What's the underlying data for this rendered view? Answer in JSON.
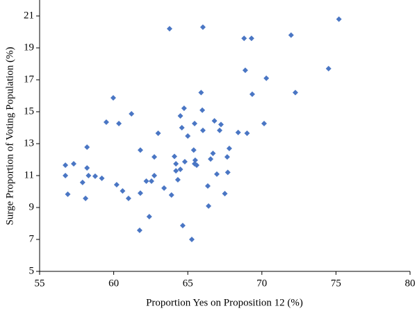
{
  "chart_data": {
    "type": "scatter",
    "x_label": "Proportion Yes on Proposition 12 (%)",
    "y_label": "Surge Proportion of  Voting Population (%)",
    "color": "#4a76c4",
    "xlim": [
      55,
      80
    ],
    "xticks": [
      55,
      60,
      65,
      70,
      75,
      80
    ],
    "ylim": [
      5,
      22
    ],
    "yticks": [
      5,
      7,
      9,
      11,
      13,
      15,
      17,
      19,
      21
    ],
    "x": [
      56.74,
      56.74,
      56.9,
      57.3,
      57.9,
      58.1,
      58.2,
      58.2,
      58.3,
      58.75,
      59.2,
      59.5,
      59.97,
      60.2,
      60.35,
      60.6,
      61.0,
      61.2,
      61.8,
      61.8,
      61.75,
      62.2,
      62.4,
      62.55,
      62.74,
      62.74,
      63.0,
      63.4,
      63.77,
      63.9,
      64.1,
      64.2,
      64.2,
      64.33,
      64.5,
      64.5,
      64.6,
      64.66,
      64.75,
      64.8,
      65.0,
      65.27,
      65.46,
      65.4,
      65.46,
      65.5,
      65.6,
      65.9,
      65.98,
      66.02,
      66.02,
      66.35,
      66.4,
      66.54,
      66.7,
      66.8,
      66.96,
      67.15,
      67.24,
      67.5,
      67.66,
      67.7,
      67.8,
      68.4,
      68.8,
      68.88,
      69.0,
      69.3,
      69.35,
      70.15,
      70.3,
      71.97,
      72.26,
      74.5,
      75.2
    ],
    "values": [
      11.65,
      11.0,
      9.83,
      11.74,
      10.57,
      9.57,
      12.78,
      11.48,
      11.0,
      10.96,
      10.83,
      14.35,
      15.87,
      10.43,
      14.26,
      10.04,
      9.57,
      14.87,
      12.6,
      9.9,
      7.57,
      10.65,
      8.43,
      10.65,
      11.0,
      12.17,
      13.65,
      10.22,
      20.2,
      9.78,
      12.2,
      11.74,
      11.3,
      10.74,
      11.39,
      14.74,
      14.0,
      7.87,
      15.22,
      11.87,
      13.48,
      7.0,
      14.26,
      12.6,
      11.74,
      11.96,
      11.65,
      16.2,
      15.1,
      13.83,
      20.3,
      10.35,
      9.09,
      12.04,
      12.39,
      14.43,
      11.09,
      13.83,
      14.2,
      9.87,
      12.17,
      11.2,
      12.7,
      13.7,
      19.6,
      17.6,
      13.65,
      19.6,
      16.1,
      14.26,
      17.1,
      19.8,
      16.2,
      17.7,
      20.8
    ]
  }
}
